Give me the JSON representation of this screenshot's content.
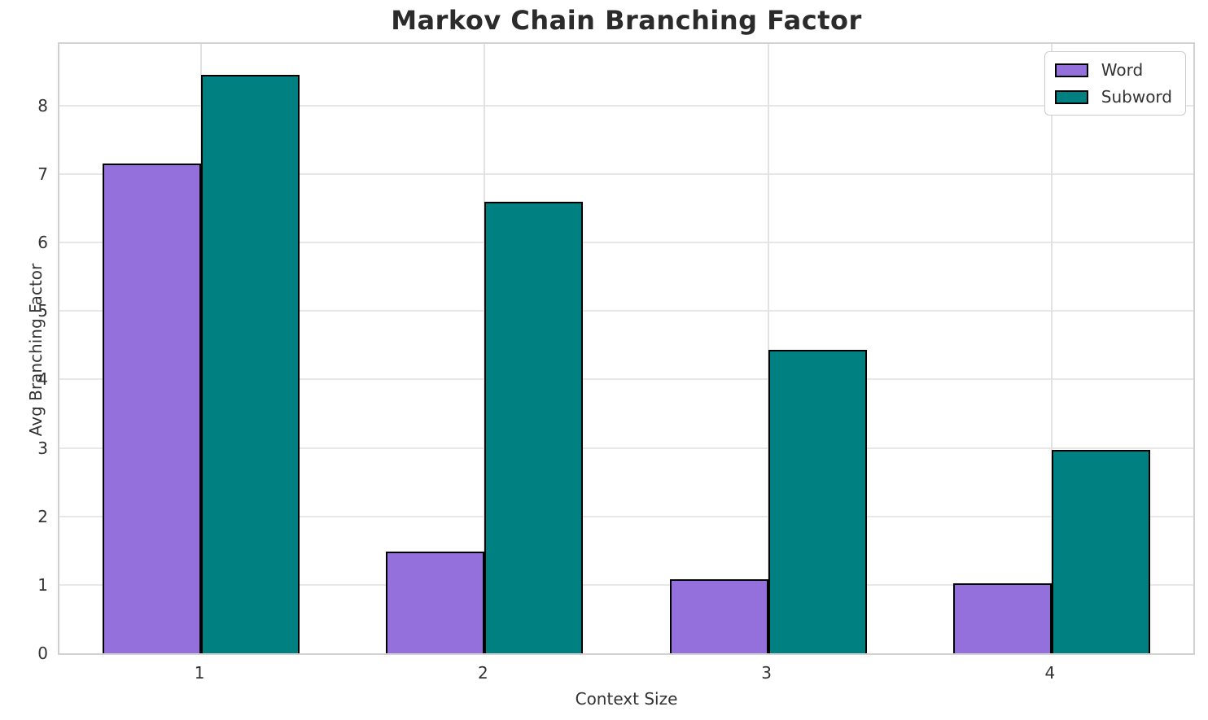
{
  "title": "Markov Chain Branching Factor",
  "chart_data": {
    "type": "bar",
    "title": "Markov Chain Branching Factor",
    "categories": [
      "1",
      "2",
      "3",
      "4"
    ],
    "series": [
      {
        "name": "Word",
        "color": "#9370DB",
        "values": [
          7.15,
          1.48,
          1.08,
          1.02
        ]
      },
      {
        "name": "Subword",
        "color": "#008080",
        "values": [
          8.45,
          6.6,
          4.43,
          2.97
        ]
      }
    ],
    "xlabel": "Context Size",
    "ylabel": "Avg Branching Factor",
    "ylim": [
      0,
      8.9
    ],
    "yticks": [
      0,
      1,
      2,
      3,
      4,
      5,
      6,
      7,
      8
    ],
    "grid": true,
    "legend_position": "upper right",
    "bar_edge_color": "#000000",
    "grid_color": "#e7e7e7",
    "background_color": "#ffffff"
  }
}
